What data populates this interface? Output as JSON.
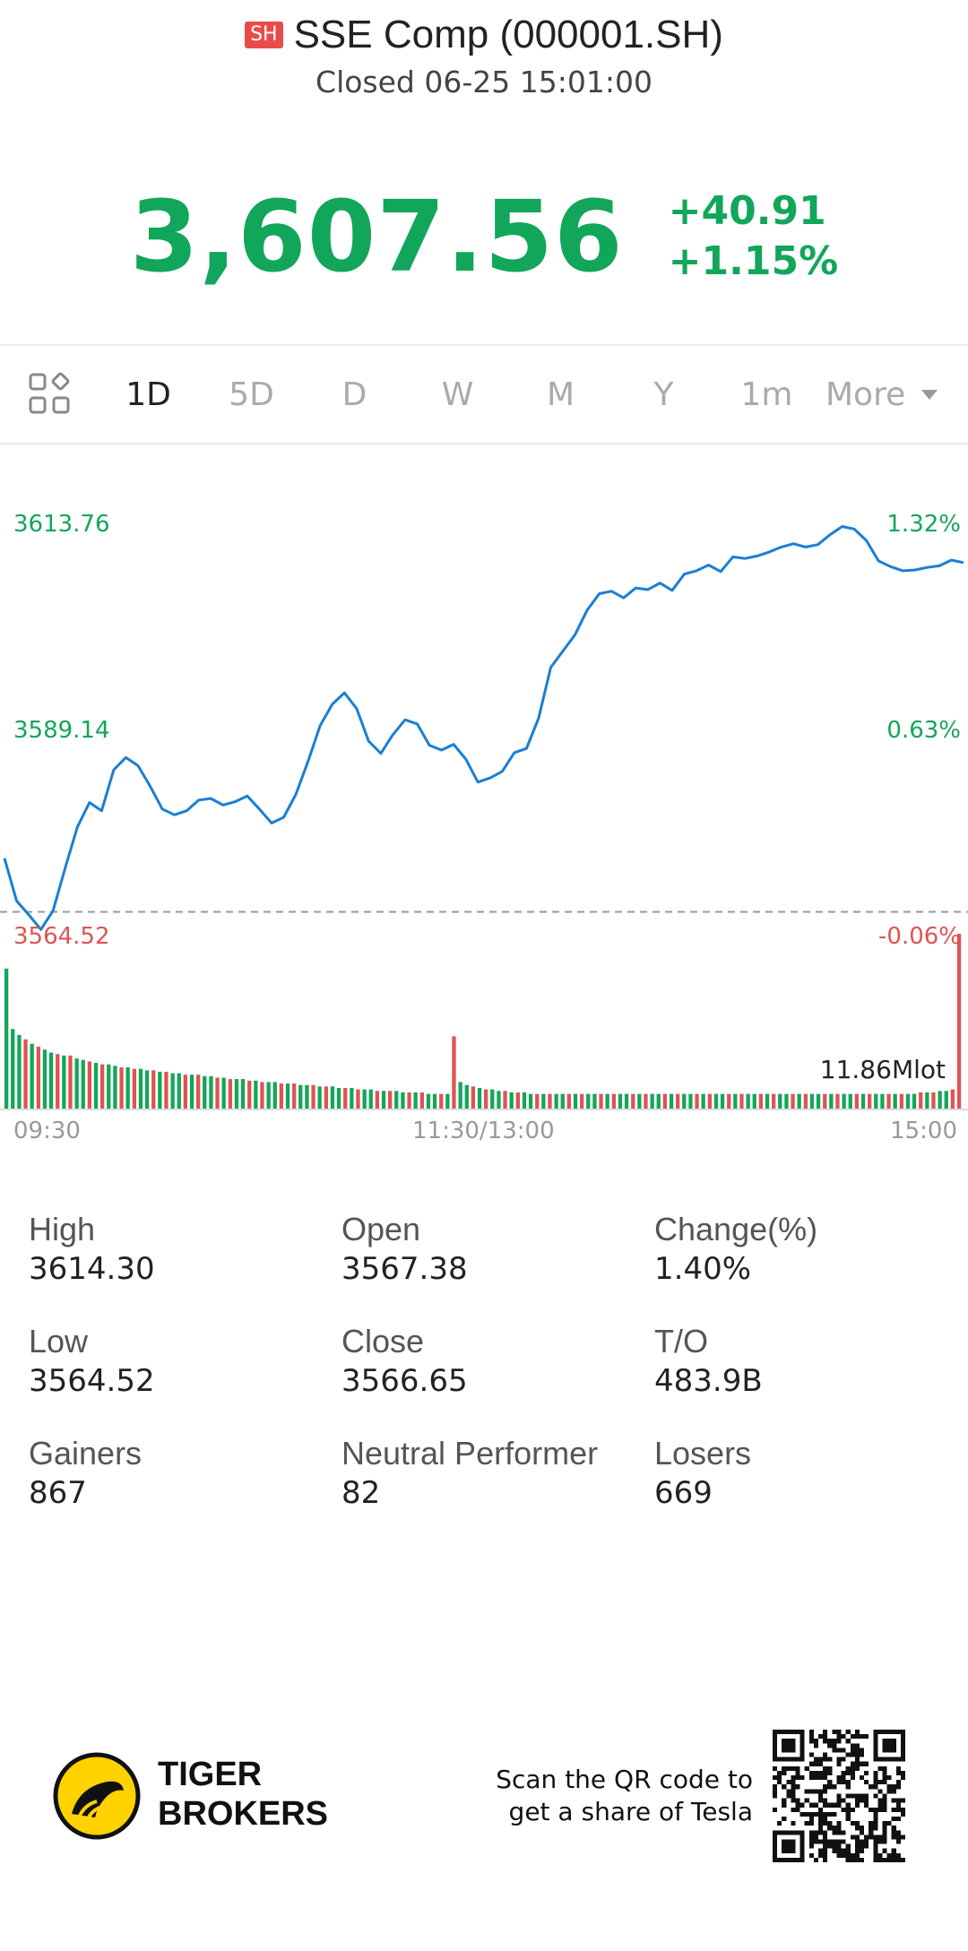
{
  "header": {
    "market_badge": "SH",
    "title": "SSE Comp (000001.SH)",
    "status": "Closed 06-25 15:01:00",
    "price": "3,607.56",
    "change": "+40.91",
    "change_percent": "+1.15%"
  },
  "tabs": {
    "items": [
      "1D",
      "5D",
      "D",
      "W",
      "M",
      "Y",
      "1m"
    ],
    "active": "1D",
    "more_label": "More",
    "layout_icon": "grid-icon"
  },
  "chart": {
    "price_labels": {
      "top": "3613.76",
      "mid": "3589.14",
      "bottom": "3564.52"
    },
    "pct_labels": {
      "top": "1.32%",
      "mid": "0.63%",
      "bottom": "-0.06%"
    },
    "time_labels": {
      "start": "09:30",
      "mid": "11:30/13:00",
      "end": "15:00"
    },
    "volume_label": "11.86Mlot",
    "colors": {
      "line": "#1a7fd4",
      "up": "#12a65a",
      "down": "#e05353"
    }
  },
  "chart_data": {
    "type": "line",
    "title": "",
    "xlabel": "",
    "ylabel": "",
    "x_range": [
      "09:30",
      "15:00"
    ],
    "ylim": [
      3564.52,
      3613.76
    ],
    "prev_close": 3566.65,
    "series": [
      {
        "values": [
          3573.2,
          3568.0,
          3566.3,
          3564.5,
          3566.8,
          3572.0,
          3577.0,
          3580.0,
          3579.0,
          3584.0,
          3585.5,
          3584.5,
          3582.0,
          3579.2,
          3578.5,
          3579.0,
          3580.3,
          3580.5,
          3579.7,
          3580.1,
          3580.8,
          3579.2,
          3577.5,
          3578.2,
          3581.0,
          3585.0,
          3589.4,
          3592.0,
          3593.4,
          3591.5,
          3587.5,
          3586.0,
          3588.3,
          3590.1,
          3589.6,
          3587.0,
          3586.4,
          3587.1,
          3585.3,
          3582.5,
          3583.0,
          3583.8,
          3586.1,
          3586.6,
          3590.3,
          3596.5,
          3598.5,
          3600.5,
          3603.5,
          3605.5,
          3605.8,
          3605.0,
          3606.2,
          3606.0,
          3606.8,
          3605.9,
          3607.9,
          3608.3,
          3609.0,
          3608.2,
          3610.0,
          3609.8,
          3610.1,
          3610.6,
          3611.2,
          3611.6,
          3611.2,
          3611.5,
          3612.7,
          3613.7,
          3613.4,
          3612.0,
          3609.5,
          3608.8,
          3608.3,
          3608.4,
          3608.7,
          3608.9,
          3609.6,
          3609.3
        ]
      },
      {
        "name": "volume",
        "values": [
          9.5,
          5.4,
          5.0,
          4.7,
          4.4,
          4.2,
          4.0,
          3.8,
          3.7,
          3.6,
          3.6,
          3.4,
          3.3,
          3.2,
          3.1,
          3.0,
          3.0,
          2.9,
          2.8,
          2.8,
          2.7,
          2.7,
          2.6,
          2.6,
          2.5,
          2.5,
          2.4,
          2.4,
          2.3,
          2.3,
          2.3,
          2.2,
          2.2,
          2.1,
          2.1,
          2.0,
          2.0,
          2.0,
          1.9,
          1.9,
          1.8,
          1.8,
          1.8,
          1.7,
          1.7,
          1.7,
          1.6,
          1.6,
          1.6,
          1.5,
          1.5,
          1.5,
          1.4,
          1.4,
          1.4,
          1.3,
          1.3,
          1.3,
          1.2,
          1.2,
          1.2,
          1.2,
          1.1,
          1.1,
          1.1,
          1.1,
          1.0,
          1.0,
          1.0,
          1.0,
          4.9,
          1.8,
          1.6,
          1.5,
          1.4,
          1.3,
          1.3,
          1.2,
          1.2,
          1.1,
          1.1,
          1.1,
          1.0,
          1.0,
          1.0,
          1.0,
          1.0,
          1.0,
          1.0,
          1.0,
          1.0,
          1.0,
          1.0,
          1.0,
          1.0,
          1.0,
          1.0,
          1.0,
          1.0,
          1.0,
          1.0,
          1.0,
          1.0,
          1.0,
          1.0,
          1.0,
          1.0,
          1.0,
          1.0,
          1.0,
          1.0,
          1.0,
          1.0,
          1.0,
          1.0,
          1.0,
          1.0,
          1.0,
          1.0,
          1.0,
          1.0,
          1.0,
          1.0,
          1.0,
          1.0,
          1.0,
          1.0,
          1.0,
          1.0,
          1.0,
          1.0,
          1.0,
          1.0,
          1.0,
          1.0,
          1.0,
          1.0,
          1.0,
          1.0,
          1.0,
          1.0,
          1.0,
          1.0,
          1.1,
          1.1,
          1.1,
          1.2,
          1.2,
          1.3,
          11.86
        ]
      }
    ]
  },
  "stats": [
    {
      "label": "High",
      "value": "3614.30"
    },
    {
      "label": "Open",
      "value": "3567.38"
    },
    {
      "label": "Change(%)",
      "value": "1.40%"
    },
    {
      "label": "Low",
      "value": "3564.52"
    },
    {
      "label": "Close",
      "value": "3566.65"
    },
    {
      "label": "T/O",
      "value": "483.9B"
    },
    {
      "label": "Gainers",
      "value": "867"
    },
    {
      "label": "Neutral Performer",
      "value": "82"
    },
    {
      "label": "Losers",
      "value": "669"
    }
  ],
  "footer": {
    "brand_line1": "TIGER",
    "brand_line2": "BROKERS",
    "promo_line1": "Scan the QR code to",
    "promo_line2": "get a share of Tesla",
    "logo_icon": "tiger-logo-icon",
    "qr_icon": "qr-code-icon"
  }
}
